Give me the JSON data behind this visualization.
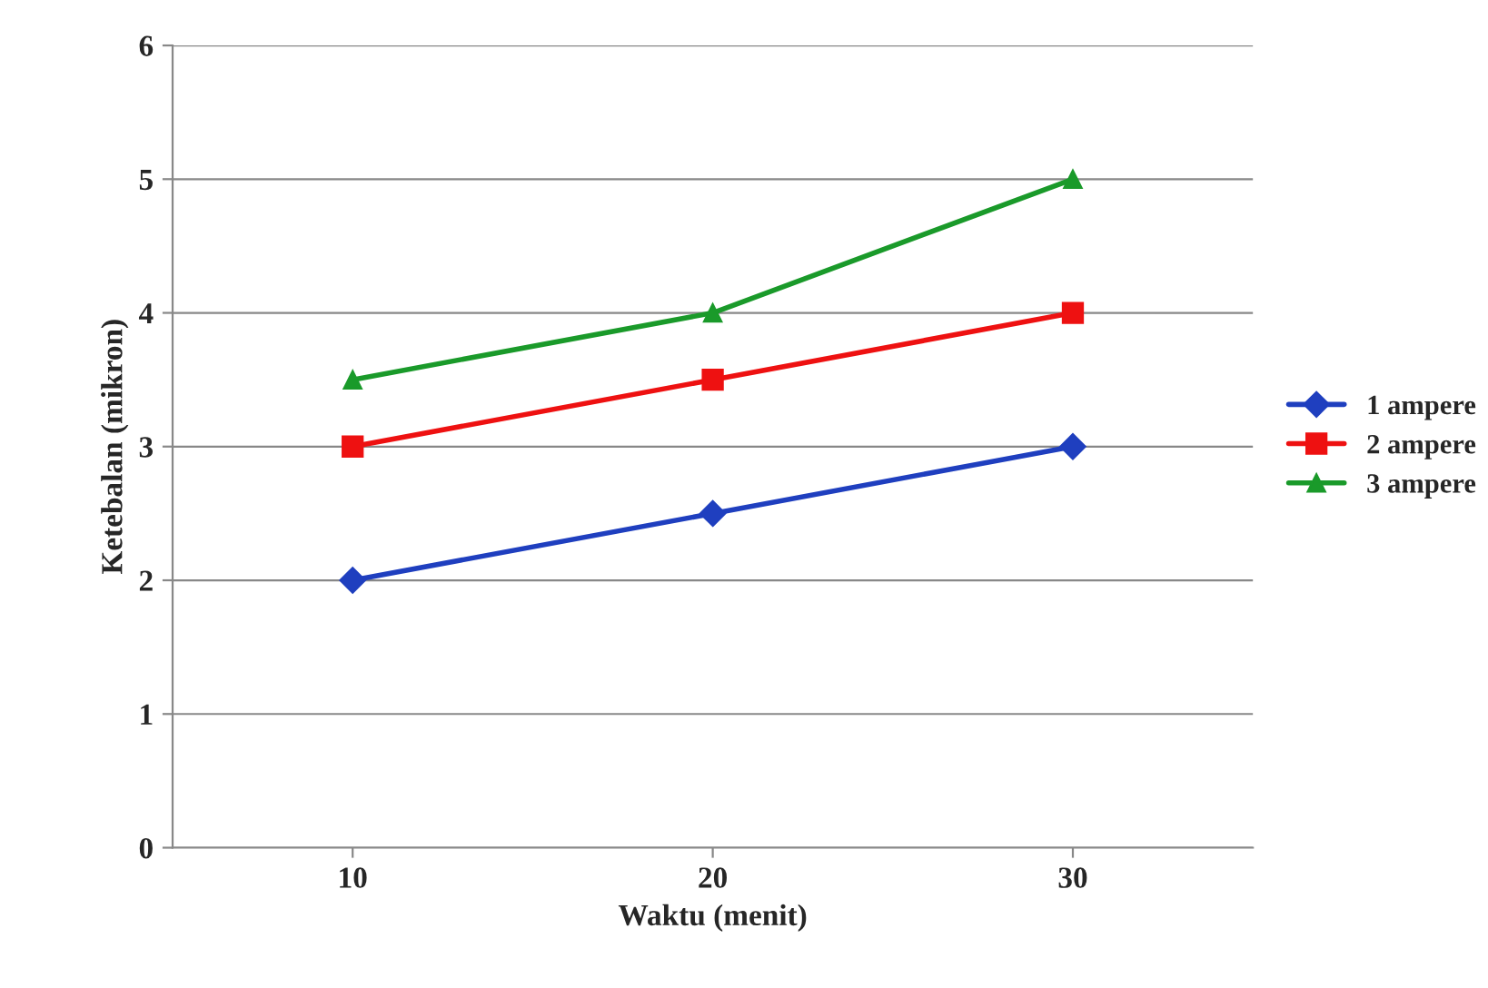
{
  "chart_data": {
    "type": "line",
    "xlabel": "Waktu (menit)",
    "ylabel": "Ketebalan (mikron)",
    "categories": [
      "10",
      "20",
      "30"
    ],
    "series": [
      {
        "name": "1 ampere",
        "color": "#1f3fbf",
        "marker": "diamond",
        "values": [
          2,
          2.5,
          3
        ]
      },
      {
        "name": "2 ampere",
        "color": "#ee1111",
        "marker": "square",
        "values": [
          3,
          3.5,
          4
        ]
      },
      {
        "name": "3 ampere",
        "color": "#1a9a2a",
        "marker": "triangle",
        "values": [
          3.5,
          4,
          5
        ]
      }
    ],
    "ylim": [
      0,
      6
    ],
    "yticks": [
      0,
      1,
      2,
      3,
      4,
      5,
      6
    ],
    "grid": "y",
    "legend": "right",
    "line_style": "solid"
  }
}
